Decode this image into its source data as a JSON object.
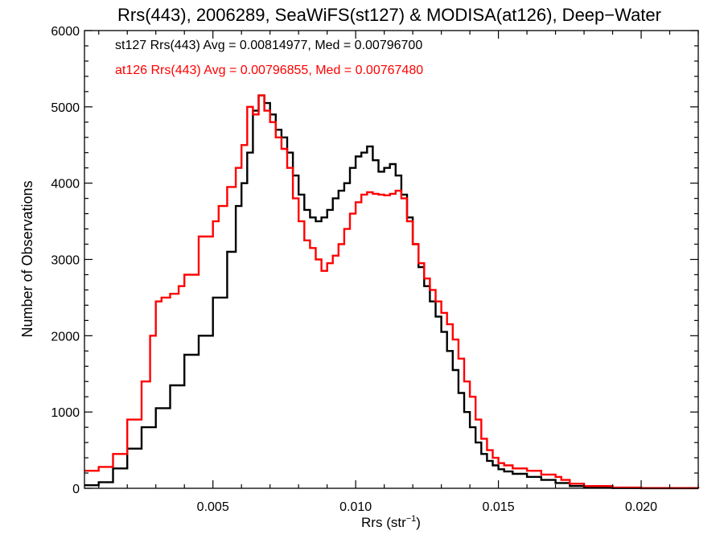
{
  "chart_data": {
    "type": "line",
    "step": true,
    "title": "Rrs(443), 2006289, SeaWiFS(st127) & MODISA(at126), Deep−Water",
    "xlabel": "Rrs (str",
    "xlabel_sup": "−1",
    "xlabel_end": ")",
    "ylabel": "Number of Observations",
    "xlim": [
      0.0005,
      0.022
    ],
    "ylim": [
      0,
      6000
    ],
    "xticks": [
      0.005,
      0.01,
      0.015,
      0.02
    ],
    "xtick_labels": [
      "0.005",
      "0.010",
      "0.015",
      "0.020"
    ],
    "yticks": [
      0,
      1000,
      2000,
      3000,
      4000,
      5000,
      6000
    ],
    "ytick_labels": [
      "0",
      "1000",
      "2000",
      "3000",
      "4000",
      "5000",
      "6000"
    ],
    "grid": false,
    "legend_placement": "top-left",
    "series": [
      {
        "name": "st127",
        "label": "st127 Rrs(443) Avg = 0.00814977, Med = 0.00796700",
        "color": "#000000",
        "points": [
          [
            0.0005,
            40
          ],
          [
            0.001,
            80
          ],
          [
            0.0015,
            260
          ],
          [
            0.002,
            520
          ],
          [
            0.0025,
            800
          ],
          [
            0.003,
            1050
          ],
          [
            0.0035,
            1350
          ],
          [
            0.004,
            1750
          ],
          [
            0.0045,
            2000
          ],
          [
            0.005,
            2500
          ],
          [
            0.0055,
            3100
          ],
          [
            0.0058,
            3700
          ],
          [
            0.006,
            4000
          ],
          [
            0.0062,
            4400
          ],
          [
            0.0064,
            4950
          ],
          [
            0.0066,
            5150
          ],
          [
            0.0068,
            5050
          ],
          [
            0.007,
            4900
          ],
          [
            0.0072,
            4700
          ],
          [
            0.0074,
            4600
          ],
          [
            0.0076,
            4400
          ],
          [
            0.0078,
            4100
          ],
          [
            0.008,
            3850
          ],
          [
            0.0082,
            3650
          ],
          [
            0.0084,
            3550
          ],
          [
            0.0086,
            3500
          ],
          [
            0.0088,
            3550
          ],
          [
            0.009,
            3650
          ],
          [
            0.0092,
            3800
          ],
          [
            0.0094,
            3900
          ],
          [
            0.0096,
            4000
          ],
          [
            0.0098,
            4200
          ],
          [
            0.01,
            4350
          ],
          [
            0.0102,
            4400
          ],
          [
            0.0104,
            4480
          ],
          [
            0.0106,
            4300
          ],
          [
            0.0108,
            4150
          ],
          [
            0.011,
            4200
          ],
          [
            0.0112,
            4250
          ],
          [
            0.0114,
            4100
          ],
          [
            0.0116,
            3850
          ],
          [
            0.0118,
            3550
          ],
          [
            0.012,
            3200
          ],
          [
            0.0122,
            2900
          ],
          [
            0.0124,
            2650
          ],
          [
            0.0126,
            2450
          ],
          [
            0.0128,
            2250
          ],
          [
            0.013,
            2050
          ],
          [
            0.0132,
            1800
          ],
          [
            0.0134,
            1550
          ],
          [
            0.0136,
            1250
          ],
          [
            0.0138,
            1000
          ],
          [
            0.014,
            800
          ],
          [
            0.0142,
            600
          ],
          [
            0.0144,
            450
          ],
          [
            0.0146,
            360
          ],
          [
            0.0148,
            300
          ],
          [
            0.015,
            250
          ],
          [
            0.0152,
            220
          ],
          [
            0.0155,
            190
          ],
          [
            0.016,
            150
          ],
          [
            0.0165,
            110
          ],
          [
            0.017,
            70
          ],
          [
            0.0175,
            30
          ],
          [
            0.018,
            10
          ],
          [
            0.019,
            3
          ],
          [
            0.02,
            1
          ],
          [
            0.022,
            0
          ]
        ]
      },
      {
        "name": "at126",
        "label": "at126 Rrs(443) Avg = 0.00796855, Med = 0.00767480",
        "color": "#ff0000",
        "points": [
          [
            0.0005,
            230
          ],
          [
            0.001,
            280
          ],
          [
            0.0015,
            450
          ],
          [
            0.002,
            900
          ],
          [
            0.0025,
            1400
          ],
          [
            0.0028,
            2000
          ],
          [
            0.003,
            2450
          ],
          [
            0.0032,
            2500
          ],
          [
            0.0035,
            2550
          ],
          [
            0.0038,
            2650
          ],
          [
            0.004,
            2800
          ],
          [
            0.0045,
            3300
          ],
          [
            0.005,
            3500
          ],
          [
            0.0052,
            3700
          ],
          [
            0.0055,
            3950
          ],
          [
            0.0058,
            4200
          ],
          [
            0.006,
            4500
          ],
          [
            0.0062,
            5000
          ],
          [
            0.0064,
            4900
          ],
          [
            0.0066,
            5150
          ],
          [
            0.0068,
            4950
          ],
          [
            0.007,
            4800
          ],
          [
            0.0072,
            4600
          ],
          [
            0.0074,
            4450
          ],
          [
            0.0076,
            4200
          ],
          [
            0.0078,
            3800
          ],
          [
            0.008,
            3500
          ],
          [
            0.0082,
            3250
          ],
          [
            0.0084,
            3150
          ],
          [
            0.0086,
            3000
          ],
          [
            0.0088,
            2850
          ],
          [
            0.009,
            2950
          ],
          [
            0.0092,
            3050
          ],
          [
            0.0094,
            3200
          ],
          [
            0.0096,
            3400
          ],
          [
            0.0098,
            3600
          ],
          [
            0.01,
            3750
          ],
          [
            0.0102,
            3850
          ],
          [
            0.0104,
            3880
          ],
          [
            0.0106,
            3860
          ],
          [
            0.0108,
            3850
          ],
          [
            0.011,
            3840
          ],
          [
            0.0112,
            3860
          ],
          [
            0.0114,
            3900
          ],
          [
            0.0116,
            3800
          ],
          [
            0.0118,
            3500
          ],
          [
            0.012,
            3200
          ],
          [
            0.0122,
            2950
          ],
          [
            0.0124,
            2750
          ],
          [
            0.0126,
            2600
          ],
          [
            0.0128,
            2450
          ],
          [
            0.013,
            2300
          ],
          [
            0.0132,
            2150
          ],
          [
            0.0134,
            1950
          ],
          [
            0.0136,
            1700
          ],
          [
            0.0138,
            1400
          ],
          [
            0.014,
            1200
          ],
          [
            0.0142,
            900
          ],
          [
            0.0144,
            650
          ],
          [
            0.0146,
            500
          ],
          [
            0.0148,
            400
          ],
          [
            0.015,
            330
          ],
          [
            0.0152,
            300
          ],
          [
            0.0155,
            260
          ],
          [
            0.016,
            230
          ],
          [
            0.0165,
            180
          ],
          [
            0.017,
            150
          ],
          [
            0.0172,
            110
          ],
          [
            0.0175,
            60
          ],
          [
            0.018,
            30
          ],
          [
            0.019,
            10
          ],
          [
            0.02,
            3
          ],
          [
            0.022,
            1
          ]
        ]
      }
    ]
  }
}
